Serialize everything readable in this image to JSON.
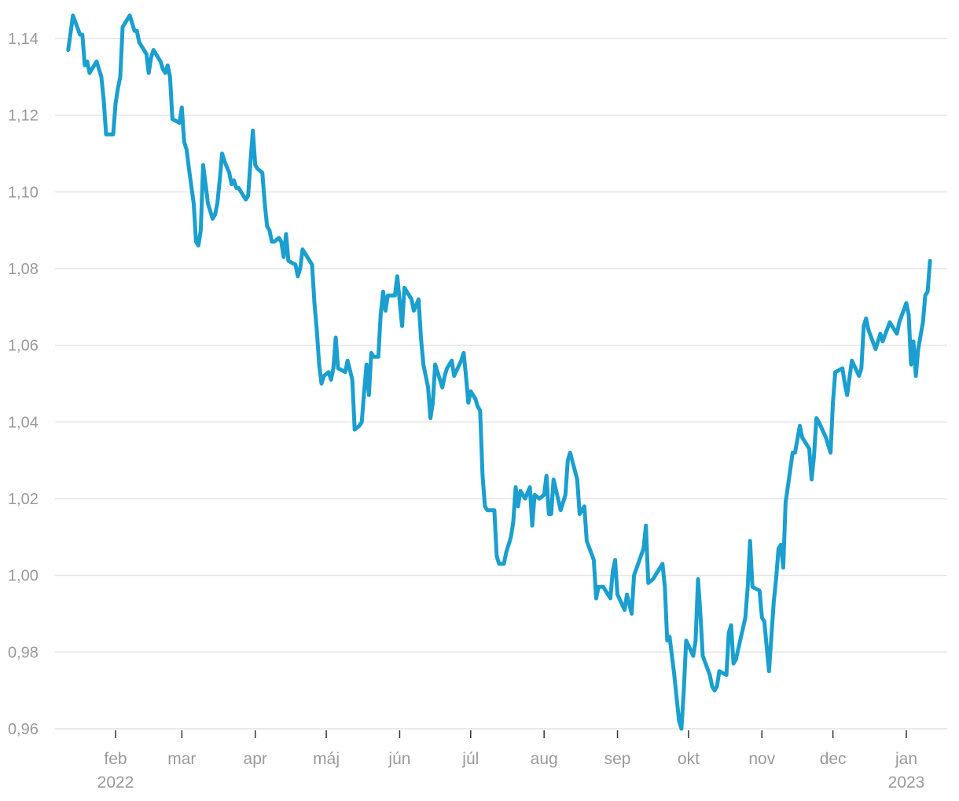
{
  "chart_data": {
    "type": "line",
    "title": "",
    "xlabel": "",
    "ylabel": "",
    "ylim": [
      0.96,
      1.14
    ],
    "grid": "horizontal",
    "line_color": "#1a9fcf",
    "y_ticks": [
      {
        "value": 0.96,
        "label": "0,96"
      },
      {
        "value": 0.98,
        "label": "0,98"
      },
      {
        "value": 1.0,
        "label": "1,00"
      },
      {
        "value": 1.02,
        "label": "1,02"
      },
      {
        "value": 1.04,
        "label": "1,04"
      },
      {
        "value": 1.06,
        "label": "1,06"
      },
      {
        "value": 1.08,
        "label": "1,08"
      },
      {
        "value": 1.1,
        "label": "1,10"
      },
      {
        "value": 1.12,
        "label": "1,12"
      },
      {
        "value": 1.14,
        "label": "1,14"
      }
    ],
    "x_ticks": [
      {
        "date": "2022-02-01",
        "label": "feb",
        "year": "2022"
      },
      {
        "date": "2022-03-01",
        "label": "mar"
      },
      {
        "date": "2022-04-01",
        "label": "apr"
      },
      {
        "date": "2022-05-01",
        "label": "máj"
      },
      {
        "date": "2022-06-01",
        "label": "jún"
      },
      {
        "date": "2022-07-01",
        "label": "júl"
      },
      {
        "date": "2022-08-01",
        "label": "aug"
      },
      {
        "date": "2022-09-01",
        "label": "sep"
      },
      {
        "date": "2022-10-01",
        "label": "okt"
      },
      {
        "date": "2022-11-01",
        "label": "nov"
      },
      {
        "date": "2022-12-01",
        "label": "dec"
      },
      {
        "date": "2023-01-01",
        "label": "jan",
        "year": "2023"
      }
    ],
    "series": [
      {
        "points": [
          [
            "2022-01-12",
            1.137
          ],
          [
            "2022-01-14",
            1.146
          ],
          [
            "2022-01-17",
            1.141
          ],
          [
            "2022-01-18",
            1.141
          ],
          [
            "2022-01-19",
            1.133
          ],
          [
            "2022-01-20",
            1.134
          ],
          [
            "2022-01-21",
            1.131
          ],
          [
            "2022-01-24",
            1.134
          ],
          [
            "2022-01-26",
            1.13
          ],
          [
            "2022-01-27",
            1.124
          ],
          [
            "2022-01-28",
            1.115
          ],
          [
            "2022-01-31",
            1.115
          ],
          [
            "2022-02-01",
            1.123
          ],
          [
            "2022-02-02",
            1.127
          ],
          [
            "2022-02-03",
            1.13
          ],
          [
            "2022-02-04",
            1.143
          ],
          [
            "2022-02-07",
            1.146
          ],
          [
            "2022-02-08",
            1.144
          ],
          [
            "2022-02-09",
            1.142
          ],
          [
            "2022-02-10",
            1.142
          ],
          [
            "2022-02-11",
            1.139
          ],
          [
            "2022-02-14",
            1.136
          ],
          [
            "2022-02-15",
            1.131
          ],
          [
            "2022-02-16",
            1.135
          ],
          [
            "2022-02-17",
            1.137
          ],
          [
            "2022-02-20",
            1.134
          ],
          [
            "2022-02-21",
            1.132
          ],
          [
            "2022-02-22",
            1.131
          ],
          [
            "2022-02-23",
            1.133
          ],
          [
            "2022-02-24",
            1.13
          ],
          [
            "2022-02-25",
            1.119
          ],
          [
            "2022-02-28",
            1.118
          ],
          [
            "2022-03-01",
            1.122
          ],
          [
            "2022-03-02",
            1.113
          ],
          [
            "2022-03-03",
            1.111
          ],
          [
            "2022-03-04",
            1.106
          ],
          [
            "2022-03-06",
            1.097
          ],
          [
            "2022-03-07",
            1.087
          ],
          [
            "2022-03-08",
            1.086
          ],
          [
            "2022-03-09",
            1.09
          ],
          [
            "2022-03-10",
            1.107
          ],
          [
            "2022-03-11",
            1.102
          ],
          [
            "2022-03-12",
            1.097
          ],
          [
            "2022-03-14",
            1.093
          ],
          [
            "2022-03-15",
            1.094
          ],
          [
            "2022-03-16",
            1.097
          ],
          [
            "2022-03-17",
            1.103
          ],
          [
            "2022-03-18",
            1.11
          ],
          [
            "2022-03-19",
            1.108
          ],
          [
            "2022-03-21",
            1.105
          ],
          [
            "2022-03-22",
            1.102
          ],
          [
            "2022-03-23",
            1.103
          ],
          [
            "2022-03-24",
            1.101
          ],
          [
            "2022-03-25",
            1.101
          ],
          [
            "2022-03-27",
            1.099
          ],
          [
            "2022-03-28",
            1.098
          ],
          [
            "2022-03-29",
            1.099
          ],
          [
            "2022-03-30",
            1.108
          ],
          [
            "2022-03-31",
            1.116
          ],
          [
            "2022-04-01",
            1.107
          ],
          [
            "2022-04-02",
            1.106
          ],
          [
            "2022-04-04",
            1.105
          ],
          [
            "2022-04-05",
            1.097
          ],
          [
            "2022-04-06",
            1.091
          ],
          [
            "2022-04-07",
            1.09
          ],
          [
            "2022-04-08",
            1.087
          ],
          [
            "2022-04-09",
            1.087
          ],
          [
            "2022-04-11",
            1.088
          ],
          [
            "2022-04-12",
            1.087
          ],
          [
            "2022-04-13",
            1.083
          ],
          [
            "2022-04-14",
            1.089
          ],
          [
            "2022-04-15",
            1.082
          ],
          [
            "2022-04-18",
            1.081
          ],
          [
            "2022-04-19",
            1.078
          ],
          [
            "2022-04-20",
            1.08
          ],
          [
            "2022-04-21",
            1.085
          ],
          [
            "2022-04-24",
            1.082
          ],
          [
            "2022-04-25",
            1.081
          ],
          [
            "2022-04-26",
            1.071
          ],
          [
            "2022-04-27",
            1.064
          ],
          [
            "2022-04-28",
            1.055
          ],
          [
            "2022-04-29",
            1.05
          ],
          [
            "2022-04-30",
            1.052
          ],
          [
            "2022-05-02",
            1.053
          ],
          [
            "2022-05-03",
            1.051
          ],
          [
            "2022-05-04",
            1.054
          ],
          [
            "2022-05-05",
            1.062
          ],
          [
            "2022-05-06",
            1.054
          ],
          [
            "2022-05-09",
            1.053
          ],
          [
            "2022-05-10",
            1.056
          ],
          [
            "2022-05-12",
            1.051
          ],
          [
            "2022-05-13",
            1.038
          ],
          [
            "2022-05-15",
            1.039
          ],
          [
            "2022-05-16",
            1.04
          ],
          [
            "2022-05-17",
            1.048
          ],
          [
            "2022-05-18",
            1.055
          ],
          [
            "2022-05-19",
            1.047
          ],
          [
            "2022-05-20",
            1.058
          ],
          [
            "2022-05-21",
            1.057
          ],
          [
            "2022-05-23",
            1.057
          ],
          [
            "2022-05-24",
            1.068
          ],
          [
            "2022-05-25",
            1.074
          ],
          [
            "2022-05-26",
            1.069
          ],
          [
            "2022-05-27",
            1.073
          ],
          [
            "2022-05-30",
            1.073
          ],
          [
            "2022-05-31",
            1.078
          ],
          [
            "2022-06-02",
            1.065
          ],
          [
            "2022-06-03",
            1.075
          ],
          [
            "2022-06-04",
            1.074
          ],
          [
            "2022-06-06",
            1.072
          ],
          [
            "2022-06-07",
            1.069
          ],
          [
            "2022-06-09",
            1.072
          ],
          [
            "2022-06-10",
            1.062
          ],
          [
            "2022-06-11",
            1.055
          ],
          [
            "2022-06-13",
            1.049
          ],
          [
            "2022-06-14",
            1.041
          ],
          [
            "2022-06-15",
            1.045
          ],
          [
            "2022-06-16",
            1.055
          ],
          [
            "2022-06-17",
            1.053
          ],
          [
            "2022-06-19",
            1.049
          ],
          [
            "2022-06-20",
            1.052
          ],
          [
            "2022-06-21",
            1.054
          ],
          [
            "2022-06-23",
            1.056
          ],
          [
            "2022-06-24",
            1.052
          ],
          [
            "2022-06-27",
            1.056
          ],
          [
            "2022-06-28",
            1.058
          ],
          [
            "2022-06-29",
            1.052
          ],
          [
            "2022-06-30",
            1.045
          ],
          [
            "2022-07-01",
            1.048
          ],
          [
            "2022-07-03",
            1.046
          ],
          [
            "2022-07-04",
            1.044
          ],
          [
            "2022-07-05",
            1.043
          ],
          [
            "2022-07-06",
            1.026
          ],
          [
            "2022-07-07",
            1.018
          ],
          [
            "2022-07-08",
            1.017
          ],
          [
            "2022-07-11",
            1.017
          ],
          [
            "2022-07-12",
            1.005
          ],
          [
            "2022-07-13",
            1.003
          ],
          [
            "2022-07-15",
            1.003
          ],
          [
            "2022-07-16",
            1.006
          ],
          [
            "2022-07-18",
            1.01
          ],
          [
            "2022-07-19",
            1.014
          ],
          [
            "2022-07-20",
            1.023
          ],
          [
            "2022-07-21",
            1.018
          ],
          [
            "2022-07-22",
            1.022
          ],
          [
            "2022-07-24",
            1.02
          ],
          [
            "2022-07-26",
            1.023
          ],
          [
            "2022-07-27",
            1.013
          ],
          [
            "2022-07-28",
            1.021
          ],
          [
            "2022-07-30",
            1.02
          ],
          [
            "2022-08-01",
            1.021
          ],
          [
            "2022-08-02",
            1.026
          ],
          [
            "2022-08-03",
            1.016
          ],
          [
            "2022-08-04",
            1.016
          ],
          [
            "2022-08-05",
            1.025
          ],
          [
            "2022-08-08",
            1.017
          ],
          [
            "2022-08-10",
            1.021
          ],
          [
            "2022-08-11",
            1.03
          ],
          [
            "2022-08-12",
            1.032
          ],
          [
            "2022-08-15",
            1.025
          ],
          [
            "2022-08-16",
            1.016
          ],
          [
            "2022-08-18",
            1.018
          ],
          [
            "2022-08-19",
            1.009
          ],
          [
            "2022-08-22",
            1.004
          ],
          [
            "2022-08-23",
            0.994
          ],
          [
            "2022-08-24",
            0.997
          ],
          [
            "2022-08-26",
            0.997
          ],
          [
            "2022-08-29",
            0.994
          ],
          [
            "2022-08-30",
            1.001
          ],
          [
            "2022-08-31",
            1.004
          ],
          [
            "2022-09-01",
            0.995
          ],
          [
            "2022-09-04",
            0.991
          ],
          [
            "2022-09-05",
            0.995
          ],
          [
            "2022-09-07",
            0.99
          ],
          [
            "2022-09-08",
            1.0
          ],
          [
            "2022-09-12",
            1.007
          ],
          [
            "2022-09-13",
            1.013
          ],
          [
            "2022-09-14",
            0.998
          ],
          [
            "2022-09-16",
            0.999
          ],
          [
            "2022-09-20",
            1.003
          ],
          [
            "2022-09-21",
            0.997
          ],
          [
            "2022-09-22",
            0.983
          ],
          [
            "2022-09-23",
            0.984
          ],
          [
            "2022-09-25",
            0.974
          ],
          [
            "2022-09-26",
            0.968
          ],
          [
            "2022-09-27",
            0.962
          ],
          [
            "2022-09-28",
            0.96
          ],
          [
            "2022-09-29",
            0.97
          ],
          [
            "2022-09-30",
            0.983
          ],
          [
            "2022-10-03",
            0.979
          ],
          [
            "2022-10-04",
            0.983
          ],
          [
            "2022-10-05",
            0.999
          ],
          [
            "2022-10-06",
            0.99
          ],
          [
            "2022-10-07",
            0.979
          ],
          [
            "2022-10-10",
            0.974
          ],
          [
            "2022-10-11",
            0.971
          ],
          [
            "2022-10-12",
            0.97
          ],
          [
            "2022-10-13",
            0.971
          ],
          [
            "2022-10-14",
            0.975
          ],
          [
            "2022-10-17",
            0.974
          ],
          [
            "2022-10-18",
            0.985
          ],
          [
            "2022-10-19",
            0.987
          ],
          [
            "2022-10-20",
            0.977
          ],
          [
            "2022-10-21",
            0.978
          ],
          [
            "2022-10-25",
            0.989
          ],
          [
            "2022-10-26",
            0.997
          ],
          [
            "2022-10-27",
            1.009
          ],
          [
            "2022-10-28",
            0.997
          ],
          [
            "2022-10-31",
            0.996
          ],
          [
            "2022-11-01",
            0.989
          ],
          [
            "2022-11-02",
            0.988
          ],
          [
            "2022-11-04",
            0.975
          ],
          [
            "2022-11-05",
            0.984
          ],
          [
            "2022-11-06",
            0.993
          ],
          [
            "2022-11-07",
            0.999
          ],
          [
            "2022-11-08",
            1.007
          ],
          [
            "2022-11-09",
            1.008
          ],
          [
            "2022-11-10",
            1.002
          ],
          [
            "2022-11-11",
            1.019
          ],
          [
            "2022-11-14",
            1.032
          ],
          [
            "2022-11-15",
            1.032
          ],
          [
            "2022-11-17",
            1.039
          ],
          [
            "2022-11-18",
            1.036
          ],
          [
            "2022-11-21",
            1.033
          ],
          [
            "2022-11-22",
            1.025
          ],
          [
            "2022-11-23",
            1.031
          ],
          [
            "2022-11-24",
            1.041
          ],
          [
            "2022-11-25",
            1.04
          ],
          [
            "2022-11-28",
            1.036
          ],
          [
            "2022-11-30",
            1.032
          ],
          [
            "2022-12-01",
            1.045
          ],
          [
            "2022-12-02",
            1.053
          ],
          [
            "2022-12-05",
            1.054
          ],
          [
            "2022-12-06",
            1.05
          ],
          [
            "2022-12-07",
            1.047
          ],
          [
            "2022-12-09",
            1.056
          ],
          [
            "2022-12-12",
            1.052
          ],
          [
            "2022-12-13",
            1.054
          ],
          [
            "2022-12-14",
            1.065
          ],
          [
            "2022-12-15",
            1.067
          ],
          [
            "2022-12-16",
            1.064
          ],
          [
            "2022-12-19",
            1.059
          ],
          [
            "2022-12-21",
            1.063
          ],
          [
            "2022-12-22",
            1.061
          ],
          [
            "2022-12-25",
            1.066
          ],
          [
            "2022-12-26",
            1.065
          ],
          [
            "2022-12-28",
            1.063
          ],
          [
            "2022-12-29",
            1.066
          ],
          [
            "2023-01-01",
            1.071
          ],
          [
            "2023-01-02",
            1.068
          ],
          [
            "2023-01-03",
            1.055
          ],
          [
            "2023-01-04",
            1.061
          ],
          [
            "2023-01-05",
            1.052
          ],
          [
            "2023-01-06",
            1.059
          ],
          [
            "2023-01-08",
            1.066
          ],
          [
            "2023-01-09",
            1.073
          ],
          [
            "2023-01-10",
            1.074
          ],
          [
            "2023-01-11",
            1.082
          ]
        ]
      }
    ]
  }
}
